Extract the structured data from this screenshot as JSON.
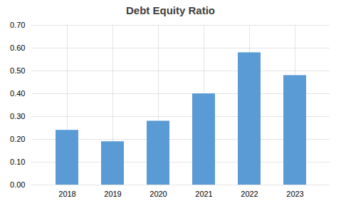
{
  "chart_data": {
    "type": "bar",
    "title": "Debt Equity Ratio",
    "categories": [
      "2018",
      "2019",
      "2020",
      "2021",
      "2022",
      "2023"
    ],
    "values": [
      0.24,
      0.19,
      0.28,
      0.4,
      0.58,
      0.48
    ],
    "color": "#5B9BD5",
    "ylim": [
      0.0,
      0.7
    ],
    "yticks": [
      {
        "value": 0.0,
        "label": "0.00"
      },
      {
        "value": 0.1,
        "label": "0.10"
      },
      {
        "value": 0.2,
        "label": "0.20"
      },
      {
        "value": 0.3,
        "label": "0.30"
      },
      {
        "value": 0.4,
        "label": "0.40"
      },
      {
        "value": 0.5,
        "label": "0.50"
      },
      {
        "value": 0.6,
        "label": "0.60"
      },
      {
        "value": 0.7,
        "label": "0.70"
      }
    ],
    "grid": true
  }
}
